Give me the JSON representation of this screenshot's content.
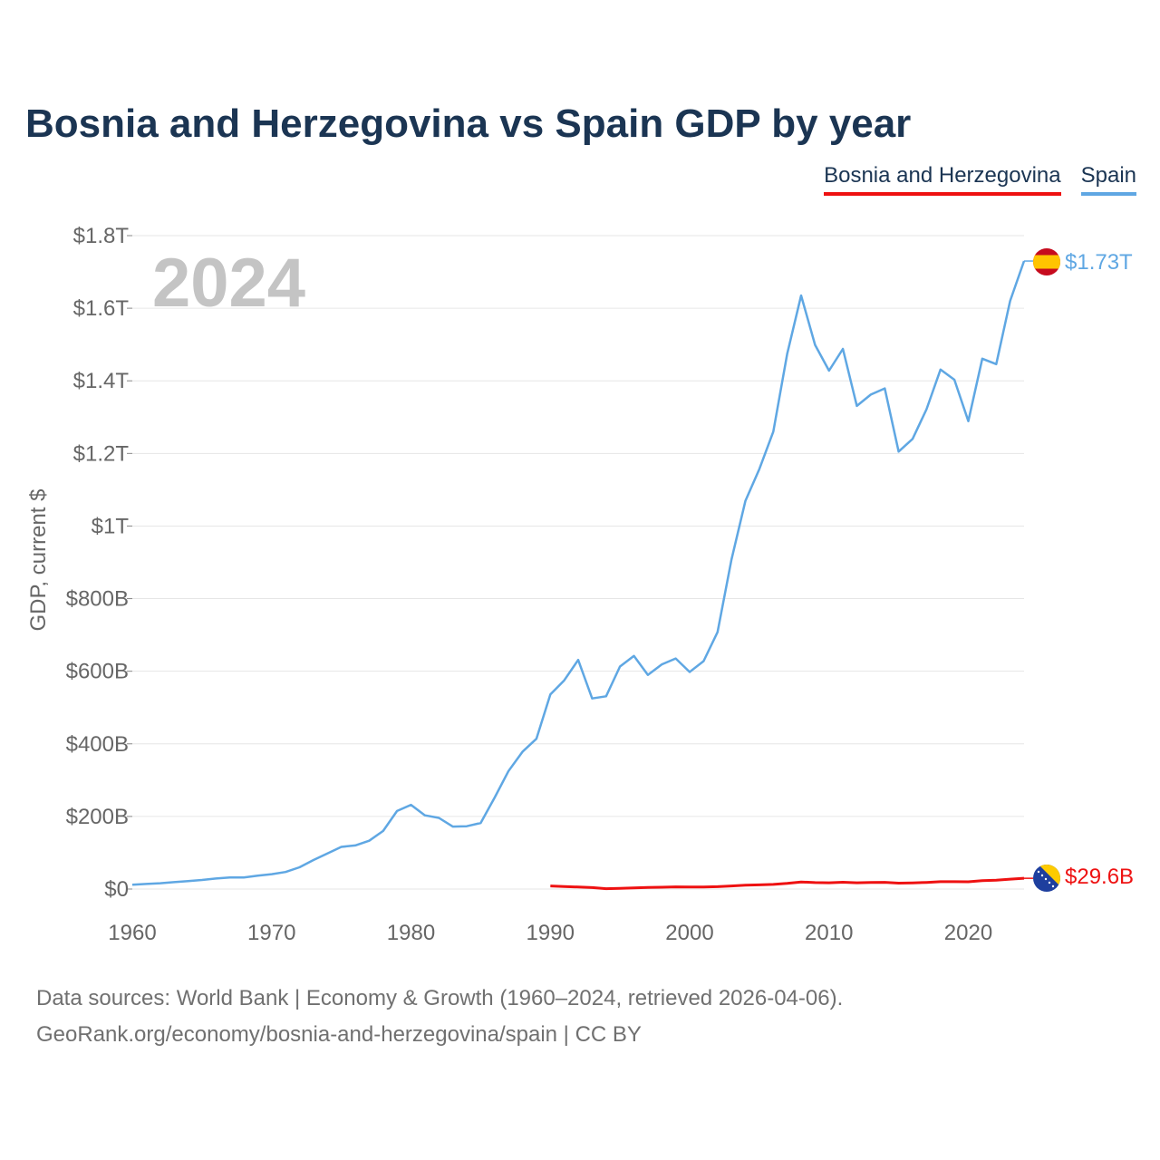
{
  "title": "Bosnia and Herzegovina vs Spain GDP by year",
  "legend": [
    {
      "name": "Bosnia and Herzegovina",
      "color": "#ee1111"
    },
    {
      "name": "Spain",
      "color": "#5fa7e3"
    }
  ],
  "footer": {
    "line1": "Data sources: World Bank | Economy & Growth (1960–2024, retrieved 2026-04-06).",
    "line2": "GeoRank.org/economy/bosnia-and-herzegovina/spain | CC BY"
  },
  "chart_data": {
    "type": "line",
    "title": "Bosnia and Herzegovina vs Spain GDP by year",
    "year_label": "2024",
    "xlabel": "",
    "ylabel": "GDP, current $",
    "xlim": [
      1960,
      2024
    ],
    "ylim": [
      0,
      1.8
    ],
    "units": "trillion current US$",
    "x_ticks": [
      1960,
      1970,
      1980,
      1990,
      2000,
      2010,
      2020
    ],
    "x_tick_labels": [
      "1960",
      "1970",
      "1980",
      "1990",
      "2000",
      "2010",
      "2020"
    ],
    "y_ticks": [
      0,
      0.2,
      0.4,
      0.6,
      0.8,
      1.0,
      1.2,
      1.4,
      1.6,
      1.8
    ],
    "y_tick_labels": [
      "$0",
      "$200B",
      "$400B",
      "$600B",
      "$800B",
      "$1T",
      "$1.2T",
      "$1.4T",
      "$1.6T",
      "$1.8T"
    ],
    "grid": true,
    "series": [
      {
        "name": "Spain",
        "color": "#5fa7e3",
        "end_label": "$1.73T",
        "x": [
          1960,
          1961,
          1962,
          1963,
          1964,
          1965,
          1966,
          1967,
          1968,
          1969,
          1970,
          1971,
          1972,
          1973,
          1974,
          1975,
          1976,
          1977,
          1978,
          1979,
          1980,
          1981,
          1982,
          1983,
          1984,
          1985,
          1986,
          1987,
          1988,
          1989,
          1990,
          1991,
          1992,
          1993,
          1994,
          1995,
          1996,
          1997,
          1998,
          1999,
          2000,
          2001,
          2002,
          2003,
          2004,
          2005,
          2006,
          2007,
          2008,
          2009,
          2010,
          2011,
          2012,
          2013,
          2014,
          2015,
          2016,
          2017,
          2018,
          2019,
          2020,
          2021,
          2022,
          2023,
          2024
        ],
        "values": [
          0.012,
          0.014,
          0.016,
          0.019,
          0.022,
          0.025,
          0.029,
          0.032,
          0.032,
          0.037,
          0.041,
          0.047,
          0.06,
          0.08,
          0.098,
          0.116,
          0.12,
          0.133,
          0.16,
          0.215,
          0.232,
          0.203,
          0.196,
          0.172,
          0.173,
          0.182,
          0.252,
          0.325,
          0.378,
          0.414,
          0.536,
          0.575,
          0.631,
          0.525,
          0.531,
          0.613,
          0.642,
          0.59,
          0.619,
          0.635,
          0.598,
          0.628,
          0.708,
          0.907,
          1.069,
          1.157,
          1.26,
          1.474,
          1.635,
          1.499,
          1.428,
          1.488,
          1.331,
          1.362,
          1.379,
          1.205,
          1.24,
          1.322,
          1.431,
          1.403,
          1.289,
          1.461,
          1.446,
          1.62,
          1.73
        ]
      },
      {
        "name": "Bosnia and Herzegovina",
        "color": "#ee1111",
        "end_label": "$29.6B",
        "x": [
          1990,
          1991,
          1992,
          1993,
          1994,
          1995,
          1996,
          1997,
          1998,
          1999,
          2000,
          2001,
          2002,
          2003,
          2004,
          2005,
          2006,
          2007,
          2008,
          2009,
          2010,
          2011,
          2012,
          2013,
          2014,
          2015,
          2016,
          2017,
          2018,
          2019,
          2020,
          2021,
          2022,
          2023,
          2024
        ],
        "values": [
          0.0085,
          0.007,
          0.0055,
          0.004,
          0.001,
          0.002,
          0.003,
          0.0045,
          0.005,
          0.006,
          0.0055,
          0.0058,
          0.0065,
          0.0085,
          0.0105,
          0.0115,
          0.0128,
          0.0155,
          0.0195,
          0.0178,
          0.0172,
          0.0186,
          0.0173,
          0.0181,
          0.0185,
          0.0162,
          0.0169,
          0.0182,
          0.0202,
          0.0201,
          0.0199,
          0.0233,
          0.0244,
          0.0273,
          0.0296
        ]
      }
    ]
  }
}
